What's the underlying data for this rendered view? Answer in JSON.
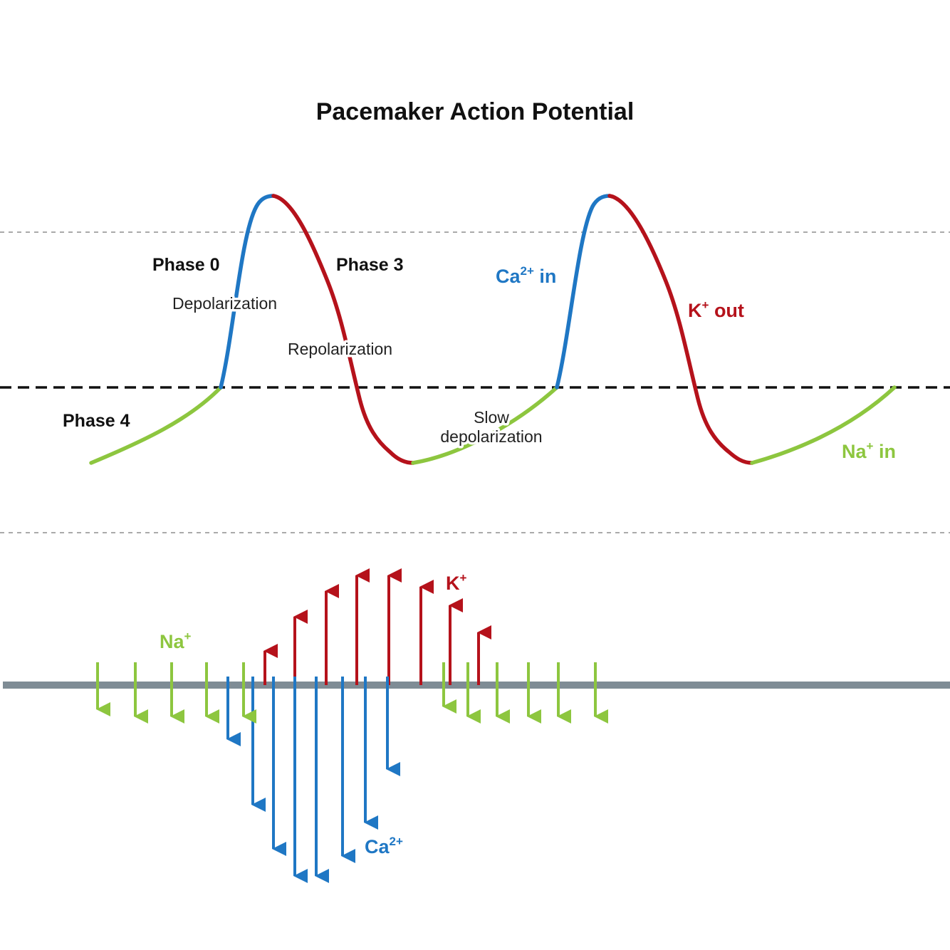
{
  "title": "Pacemaker Action Potential",
  "colors": {
    "sodium": "#8dc63f",
    "calcium": "#1f77c4",
    "potassium": "#b5121b",
    "threshold_line": "#111111",
    "guide_line": "#aaaaaa",
    "membrane": "#7f8c95"
  },
  "labels": {
    "phase0": "Phase 0",
    "phase0_desc": "Depolarization",
    "phase3": "Phase 3",
    "phase3_desc": "Repolarization",
    "phase4": "Phase 4",
    "slow_depol_line1": "Slow",
    "slow_depol_line2": "depolarization"
  },
  "ions": {
    "ca_in": {
      "base": "Ca",
      "sup": "2+",
      "suffix": " in"
    },
    "k_out": {
      "base": "K",
      "sup": "+",
      "suffix": " out"
    },
    "na_in": {
      "base": "Na",
      "sup": "+",
      "suffix": " in"
    },
    "na": {
      "base": "Na",
      "sup": "+"
    },
    "k": {
      "base": "K",
      "sup": "+"
    },
    "ca": {
      "base": "Ca",
      "sup": "2+"
    }
  }
}
